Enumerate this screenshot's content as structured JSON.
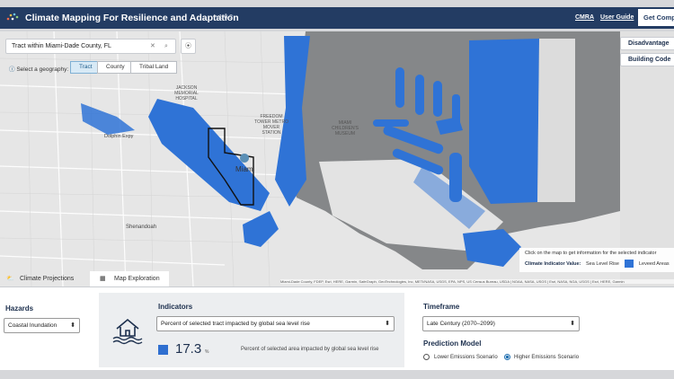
{
  "header": {
    "title": "Climate Mapping For Resilience and Adaptation",
    "version": "v1.0.3",
    "links": [
      "CMRA",
      "User Guide"
    ],
    "button": "Get Comp"
  },
  "search": {
    "value": "Tract within Miami-Dade County, FL"
  },
  "geography": {
    "label": "Select a geography:",
    "options": [
      "Tract",
      "County",
      "Tribal Land"
    ],
    "selected": 0
  },
  "map": {
    "labels": [
      "Dolphin Expy",
      "Miami",
      "Shenandoah",
      "JACKSON MEMORIAL HOSPITAL",
      "FREEDOM TOWER METRO MOVER STATION",
      "MIAMI CHILDREN'S MUSEUM"
    ],
    "side_buttons": [
      "Disadvantage",
      "Building Code"
    ],
    "legend": {
      "hint": "Click on the map to get information for the selected indicator",
      "label": "Climate Indicator Value:",
      "items": [
        "Sea Level Rise",
        "Leveed Areas"
      ]
    },
    "attribution": "Miami-Dade County, FDEP, Esri, HERE, Garmin, SafeGraph, GeoTechnologies, Inc, METI/NASA, USGS, EPA, NPS, US Census Bureau, USDA | NOAA, NASA, USGS | Esri, NASA, NGA, USGS | Esri, HERE, Garmin"
  },
  "tabs": {
    "items": [
      "Climate Projections",
      "Map Exploration"
    ],
    "active": 1
  },
  "hazards": {
    "label": "Hazards",
    "value": "Coastal Inundation"
  },
  "indicators": {
    "label": "Indicators",
    "value": "Percent of selected tract impacted by global sea level rise",
    "stat": 17.3,
    "unit": "%",
    "description": "Percent of selected area impacted by global sea level rise"
  },
  "timeframe": {
    "label": "Timeframe",
    "value": "Late Century (2070–2099)"
  },
  "prediction_model": {
    "label": "Prediction Model",
    "options": [
      "Lower Emissions Scenario",
      "Higher Emissions Scenario"
    ],
    "selected": 1
  }
}
